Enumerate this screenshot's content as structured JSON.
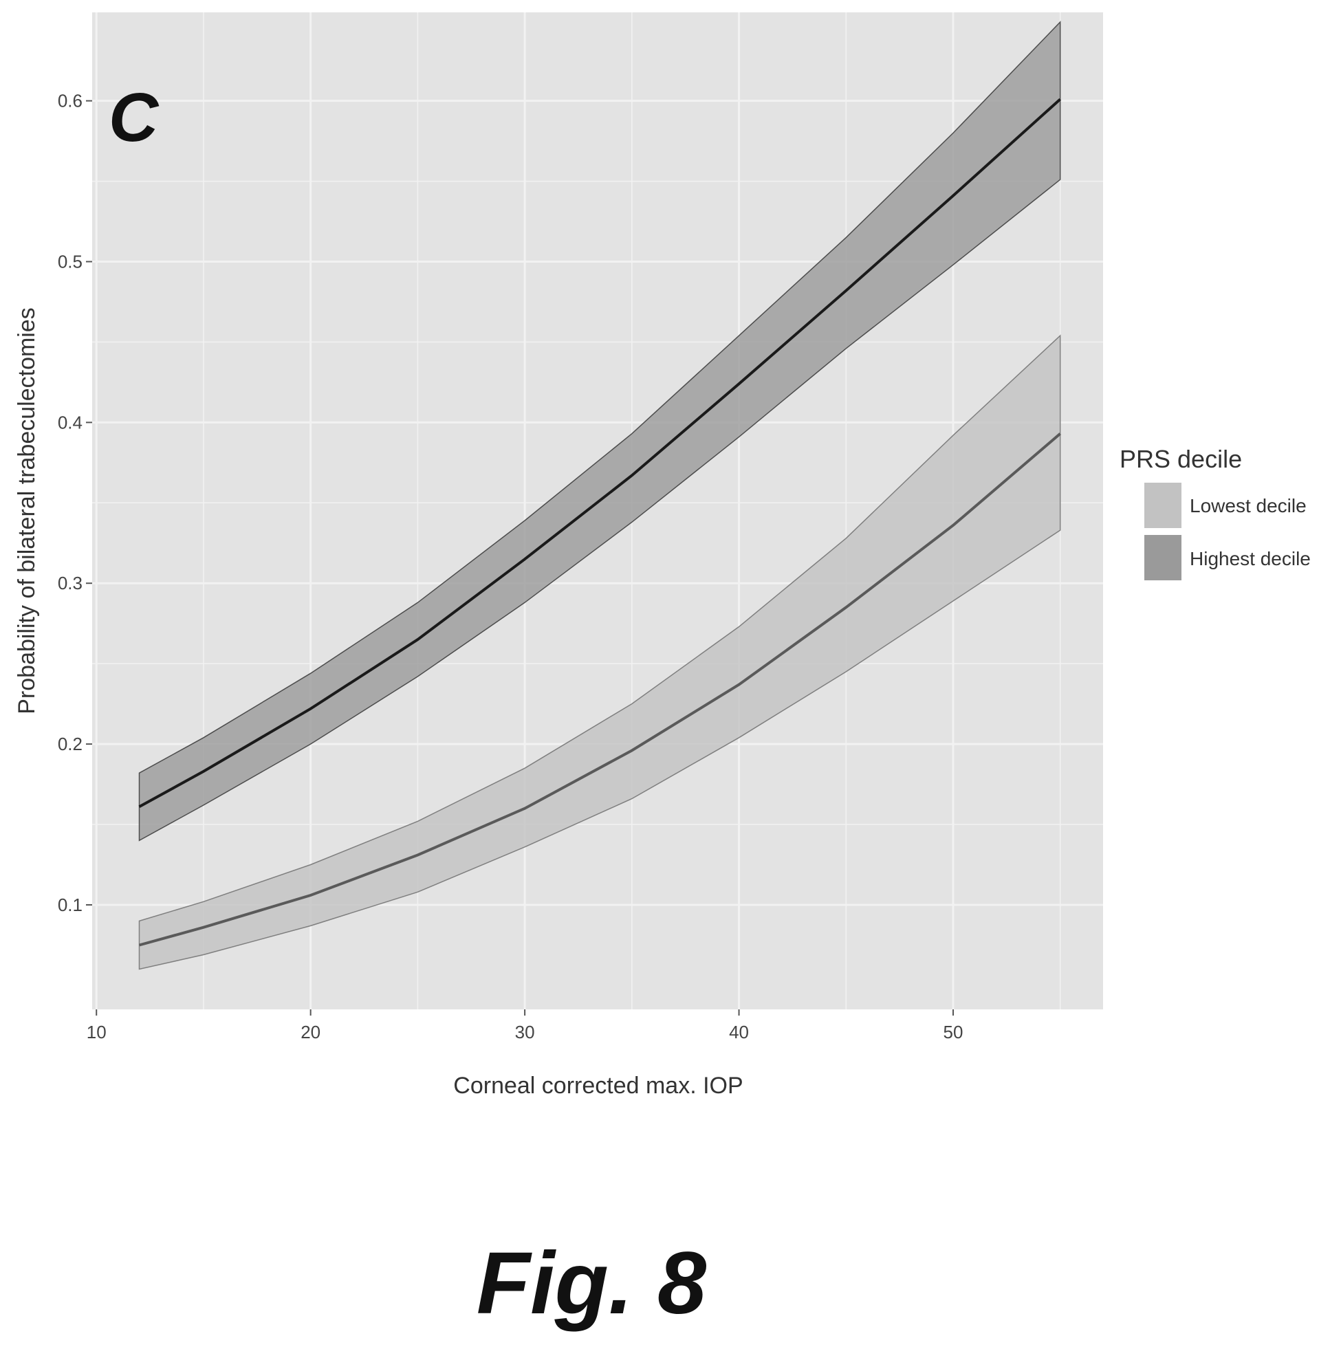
{
  "panel_letter": "C",
  "figure_caption": "Fig. 8",
  "colors": {
    "panel_bg": "#e3e3e3",
    "gridline": "#f2f2f2",
    "lowest_ribbon": "#c2c2c2",
    "highest_ribbon": "#9a9a9a",
    "lowest_line": "#5a5a5a",
    "highest_line": "#1a1a1a"
  },
  "chart_data": {
    "type": "area",
    "title": "",
    "xlabel": "Corneal corrected max. IOP",
    "ylabel": "Probability of bilateral trabeculectomies",
    "xlim": [
      9.8,
      57
    ],
    "ylim": [
      0.035,
      0.655
    ],
    "x_ticks": [
      10,
      20,
      30,
      40,
      50
    ],
    "x_tick_labels": [
      "10",
      "20",
      "30",
      "40",
      "50"
    ],
    "y_ticks": [
      0.1,
      0.2,
      0.3,
      0.4,
      0.5,
      0.6
    ],
    "y_tick_labels": [
      "0.1",
      "0.2",
      "0.3",
      "0.4",
      "0.5",
      "0.6"
    ],
    "grid": true,
    "legend": {
      "title": "PRS decile",
      "position": "right",
      "entries": [
        "Lowest decile",
        "Highest decile"
      ]
    },
    "x": [
      12,
      15,
      20,
      25,
      30,
      35,
      40,
      45,
      50,
      55
    ],
    "series": [
      {
        "name": "Lowest decile",
        "fit": [
          0.075,
          0.086,
          0.106,
          0.131,
          0.16,
          0.196,
          0.237,
          0.285,
          0.336,
          0.393
        ],
        "lower": [
          0.06,
          0.069,
          0.087,
          0.108,
          0.136,
          0.166,
          0.204,
          0.245,
          0.289,
          0.333
        ],
        "upper": [
          0.09,
          0.102,
          0.125,
          0.152,
          0.185,
          0.225,
          0.273,
          0.328,
          0.392,
          0.454
        ]
      },
      {
        "name": "Highest decile",
        "fit": [
          0.161,
          0.183,
          0.222,
          0.265,
          0.315,
          0.367,
          0.424,
          0.482,
          0.541,
          0.601
        ],
        "lower": [
          0.14,
          0.162,
          0.2,
          0.242,
          0.288,
          0.338,
          0.391,
          0.446,
          0.498,
          0.551
        ],
        "upper": [
          0.182,
          0.204,
          0.244,
          0.288,
          0.339,
          0.393,
          0.454,
          0.515,
          0.58,
          0.649
        ]
      }
    ]
  }
}
